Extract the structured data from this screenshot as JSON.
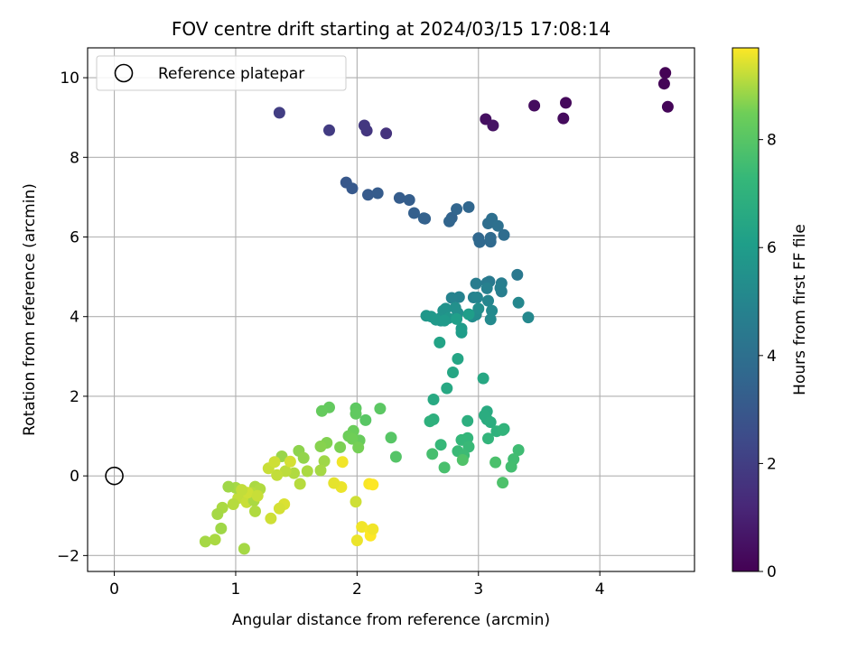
{
  "chart_data": {
    "type": "scatter",
    "title": "FOV centre drift starting at 2024/03/15 17:08:14",
    "xlabel": "Angular distance from reference (arcmin)",
    "ylabel": "Rotation from reference (arcmin)",
    "xlim": [
      -0.22,
      4.78
    ],
    "ylim": [
      -2.4,
      10.75
    ],
    "xticks": [
      0,
      1,
      2,
      3,
      4
    ],
    "yticks": [
      -2,
      0,
      2,
      4,
      6,
      8,
      10
    ],
    "grid": true,
    "legend": {
      "position": "upper-left",
      "entries": [
        "Reference platepar"
      ]
    },
    "reference_point": {
      "x": 0,
      "y": 0
    },
    "colorbar": {
      "label": "Hours from first FF file",
      "colormap": "viridis",
      "range": [
        0,
        9.7
      ],
      "ticks": [
        0,
        2,
        4,
        6,
        8
      ]
    },
    "series": [
      {
        "points": [
          [
            4.54,
            10.12,
            0.05
          ],
          [
            4.53,
            9.85,
            0.1
          ],
          [
            4.56,
            9.27,
            0.15
          ],
          [
            3.72,
            9.37,
            0.25
          ],
          [
            3.7,
            8.98,
            0.3
          ],
          [
            3.46,
            9.3,
            0.35
          ],
          [
            3.06,
            8.96,
            0.45
          ],
          [
            3.12,
            8.8,
            0.55
          ],
          [
            2.24,
            8.6,
            1.6
          ],
          [
            2.08,
            8.67,
            1.7
          ],
          [
            2.06,
            8.8,
            1.8
          ],
          [
            1.77,
            8.68,
            1.9
          ],
          [
            1.36,
            9.12,
            2.0
          ],
          [
            1.91,
            7.37,
            3.0
          ],
          [
            1.96,
            7.22,
            3.05
          ],
          [
            2.09,
            7.06,
            3.1
          ],
          [
            2.17,
            7.1,
            3.15
          ],
          [
            2.35,
            6.98,
            3.2
          ],
          [
            2.43,
            6.93,
            3.25
          ],
          [
            2.47,
            6.6,
            3.3
          ],
          [
            2.56,
            6.46,
            3.35
          ],
          [
            2.55,
            6.47,
            3.4
          ],
          [
            2.78,
            6.48,
            3.45
          ],
          [
            2.76,
            6.39,
            3.5
          ],
          [
            2.82,
            6.7,
            3.55
          ],
          [
            2.92,
            6.75,
            3.6
          ],
          [
            3.0,
            5.97,
            3.65
          ],
          [
            3.01,
            5.87,
            3.7
          ],
          [
            3.1,
            5.88,
            3.75
          ],
          [
            3.1,
            5.98,
            3.8
          ],
          [
            3.21,
            6.05,
            3.85
          ],
          [
            3.08,
            6.34,
            3.9
          ],
          [
            3.11,
            6.46,
            3.95
          ],
          [
            3.16,
            6.28,
            4.0
          ],
          [
            3.32,
            5.05,
            4.4
          ],
          [
            3.09,
            4.88,
            4.45
          ],
          [
            3.07,
            4.85,
            4.5
          ],
          [
            2.98,
            4.83,
            4.55
          ],
          [
            3.19,
            4.84,
            4.6
          ],
          [
            3.19,
            4.63,
            4.65
          ],
          [
            3.18,
            4.72,
            4.7
          ],
          [
            3.07,
            4.71,
            4.75
          ],
          [
            2.96,
            4.48,
            4.8
          ],
          [
            2.84,
            4.49,
            4.85
          ],
          [
            2.78,
            4.47,
            4.9
          ],
          [
            2.99,
            4.48,
            4.95
          ],
          [
            3.08,
            4.4,
            5.0
          ],
          [
            3.33,
            4.35,
            5.05
          ],
          [
            3.41,
            3.98,
            5.1
          ],
          [
            3.11,
            4.15,
            5.15
          ],
          [
            3.1,
            3.93,
            5.2
          ],
          [
            2.98,
            4.05,
            5.25
          ],
          [
            2.95,
            4.0,
            5.3
          ],
          [
            3.0,
            4.2,
            5.35
          ],
          [
            2.83,
            4.09,
            5.4
          ],
          [
            2.81,
            4.22,
            5.45
          ],
          [
            2.73,
            4.2,
            5.5
          ],
          [
            2.71,
            4.15,
            5.55
          ],
          [
            2.68,
            3.95,
            5.6
          ],
          [
            2.69,
            3.9,
            5.65
          ],
          [
            2.75,
            3.96,
            5.7
          ],
          [
            2.57,
            4.02,
            5.75
          ],
          [
            2.61,
            4.0,
            5.8
          ],
          [
            2.65,
            3.92,
            5.85
          ],
          [
            2.72,
            3.9,
            5.9
          ],
          [
            2.86,
            3.7,
            5.95
          ],
          [
            2.86,
            3.6,
            6.0
          ],
          [
            2.92,
            4.06,
            6.05
          ],
          [
            2.82,
            3.94,
            6.1
          ],
          [
            2.68,
            3.35,
            6.3
          ],
          [
            2.83,
            2.94,
            6.4
          ],
          [
            2.79,
            2.6,
            6.45
          ],
          [
            3.04,
            2.45,
            6.5
          ],
          [
            2.74,
            2.2,
            6.55
          ],
          [
            2.63,
            1.92,
            6.6
          ],
          [
            3.07,
            1.62,
            6.65
          ],
          [
            3.07,
            1.42,
            6.7
          ],
          [
            3.05,
            1.52,
            6.75
          ],
          [
            3.1,
            1.35,
            6.8
          ],
          [
            2.91,
            1.38,
            6.85
          ],
          [
            2.63,
            1.42,
            6.9
          ],
          [
            2.6,
            1.37,
            6.95
          ],
          [
            3.15,
            1.12,
            7.0
          ],
          [
            3.21,
            1.18,
            7.05
          ],
          [
            3.2,
            1.15,
            7.1
          ],
          [
            3.08,
            0.94,
            7.15
          ],
          [
            2.91,
            0.95,
            7.2
          ],
          [
            2.86,
            0.9,
            7.25
          ],
          [
            2.69,
            0.78,
            7.3
          ],
          [
            2.92,
            0.73,
            7.35
          ],
          [
            2.83,
            0.62,
            7.4
          ],
          [
            2.88,
            0.52,
            7.45
          ],
          [
            3.33,
            0.65,
            7.5
          ],
          [
            3.29,
            0.42,
            7.55
          ],
          [
            3.27,
            0.23,
            7.6
          ],
          [
            2.62,
            0.55,
            7.65
          ],
          [
            2.72,
            0.21,
            7.7
          ],
          [
            3.14,
            0.34,
            7.75
          ],
          [
            3.2,
            -0.17,
            7.8
          ],
          [
            2.87,
            0.4,
            7.85
          ],
          [
            2.32,
            0.48,
            7.95
          ],
          [
            2.28,
            0.96,
            8.0
          ],
          [
            2.07,
            1.4,
            8.05
          ],
          [
            2.19,
            1.69,
            8.1
          ],
          [
            1.99,
            1.7,
            8.15
          ],
          [
            1.99,
            1.56,
            8.2
          ],
          [
            1.77,
            1.72,
            8.25
          ],
          [
            1.71,
            1.63,
            8.3
          ],
          [
            2.02,
            0.89,
            8.35
          ],
          [
            1.97,
            1.13,
            8.4
          ],
          [
            1.93,
            1.0,
            8.45
          ],
          [
            1.96,
            0.93,
            8.5
          ],
          [
            2.01,
            0.71,
            8.55
          ],
          [
            1.86,
            0.72,
            8.6
          ],
          [
            1.75,
            0.83,
            8.65
          ],
          [
            1.7,
            0.74,
            8.7
          ],
          [
            1.52,
            0.63,
            8.75
          ],
          [
            1.56,
            0.45,
            8.8
          ],
          [
            1.38,
            0.49,
            8.85
          ],
          [
            1.73,
            0.37,
            8.9
          ],
          [
            1.7,
            0.14,
            8.95
          ],
          [
            1.59,
            0.12,
            9.0
          ],
          [
            1.48,
            0.07,
            9.05
          ],
          [
            1.53,
            -0.2,
            9.1
          ],
          [
            1.41,
            0.12,
            9.15
          ],
          [
            1.34,
            0.02,
            9.2
          ],
          [
            1.27,
            0.19,
            9.25
          ],
          [
            1.32,
            0.35,
            9.3
          ],
          [
            1.45,
            0.36,
            9.35
          ],
          [
            1.88,
            0.35,
            9.6
          ],
          [
            1.87,
            -0.28,
            9.55
          ],
          [
            1.81,
            -0.18,
            9.5
          ],
          [
            2.1,
            -0.2,
            9.65
          ],
          [
            2.13,
            -0.22,
            9.7
          ],
          [
            1.99,
            -0.65,
            9.3
          ],
          [
            1.4,
            -0.71,
            9.4
          ],
          [
            1.36,
            -0.82,
            9.35
          ],
          [
            1.29,
            -1.07,
            9.3
          ],
          [
            2.04,
            -1.28,
            9.6
          ],
          [
            2.11,
            -1.37,
            9.65
          ],
          [
            2.11,
            -1.5,
            9.7
          ],
          [
            2.13,
            -1.34,
            9.6
          ],
          [
            2.0,
            -1.62,
            9.55
          ],
          [
            1.16,
            -0.27,
            9.0
          ],
          [
            1.2,
            -0.33,
            9.05
          ],
          [
            1.13,
            -0.42,
            9.1
          ],
          [
            1.06,
            -0.48,
            9.15
          ],
          [
            1.02,
            -0.56,
            9.2
          ],
          [
            1.09,
            -0.66,
            9.25
          ],
          [
            1.15,
            -0.62,
            9.0
          ],
          [
            1.0,
            -0.3,
            8.95
          ],
          [
            0.94,
            -0.27,
            8.9
          ],
          [
            0.98,
            -0.71,
            9.1
          ],
          [
            0.89,
            -0.8,
            9.0
          ],
          [
            0.85,
            -0.96,
            8.95
          ],
          [
            0.88,
            -1.32,
            8.9
          ],
          [
            1.16,
            -0.89,
            9.05
          ],
          [
            0.75,
            -1.65,
            8.95
          ],
          [
            0.83,
            -1.6,
            9.0
          ],
          [
            1.07,
            -1.83,
            8.95
          ],
          [
            1.1,
            -0.42,
            9.3
          ],
          [
            1.18,
            -0.5,
            9.25
          ],
          [
            1.05,
            -0.35,
            9.2
          ]
        ]
      }
    ]
  }
}
